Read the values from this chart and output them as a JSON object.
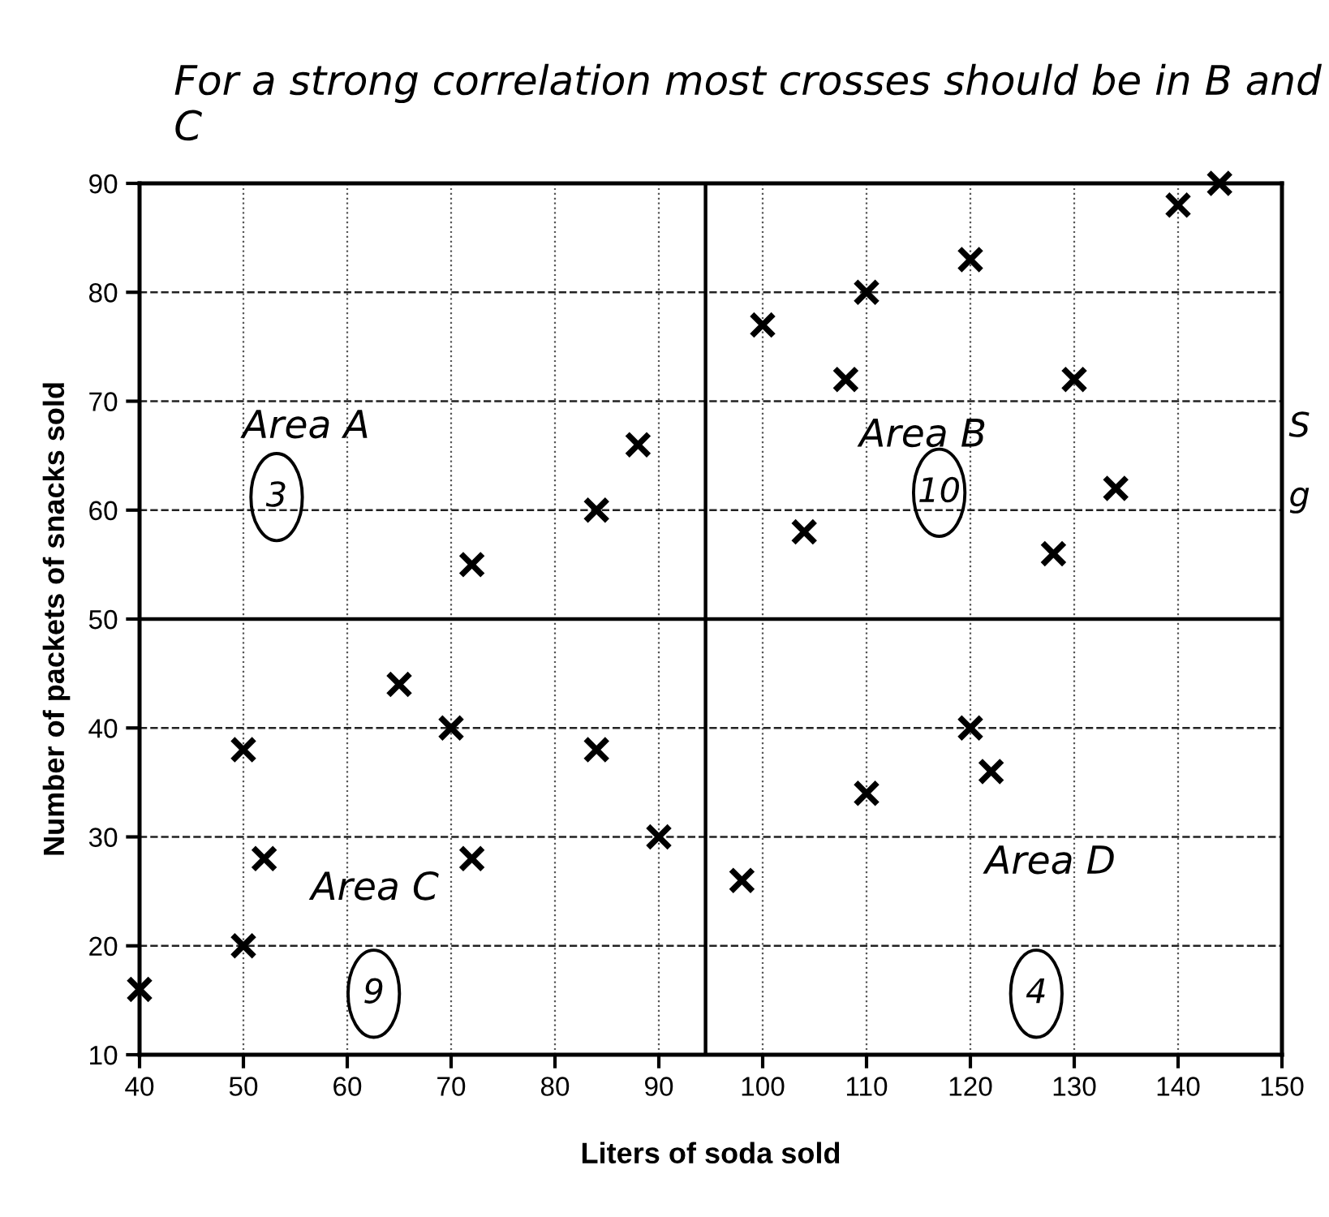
{
  "chart_data": {
    "type": "scatter",
    "xlabel": "Liters of soda sold",
    "ylabel": "Number of packets of snacks sold",
    "series": [
      {
        "color": "#000000",
        "x": [
          40,
          50,
          50,
          52,
          65,
          70,
          72,
          84,
          90,
          72,
          84,
          88,
          100,
          110,
          120,
          108,
          104,
          130,
          134,
          128,
          140,
          144,
          98,
          110,
          120,
          122
        ],
        "values": [
          16,
          20,
          38,
          28,
          44,
          40,
          28,
          38,
          30,
          55,
          60,
          66,
          77,
          80,
          83,
          72,
          58,
          72,
          62,
          56,
          88,
          90,
          26,
          34,
          40,
          36
        ]
      }
    ],
    "marker": "cross",
    "xlim": [
      40,
      150
    ],
    "xticks": [
      40,
      50,
      60,
      70,
      80,
      90,
      100,
      110,
      120,
      130,
      140,
      150
    ],
    "ylim": [
      10,
      90
    ],
    "yticks": [
      10,
      20,
      30,
      40,
      50,
      60,
      70,
      80,
      90
    ],
    "grid": true,
    "ref_lines": [
      {
        "axis": "x",
        "value": 94.5,
        "color": "#000000"
      },
      {
        "axis": "y",
        "value": 50,
        "color": "#000000"
      }
    ],
    "annotations": [
      "For a strong correlation most crosses should be in B and C",
      "Area A",
      "3",
      "Area B",
      "10",
      "Area C",
      "9",
      "Area D",
      "4",
      "S",
      "g"
    ]
  }
}
